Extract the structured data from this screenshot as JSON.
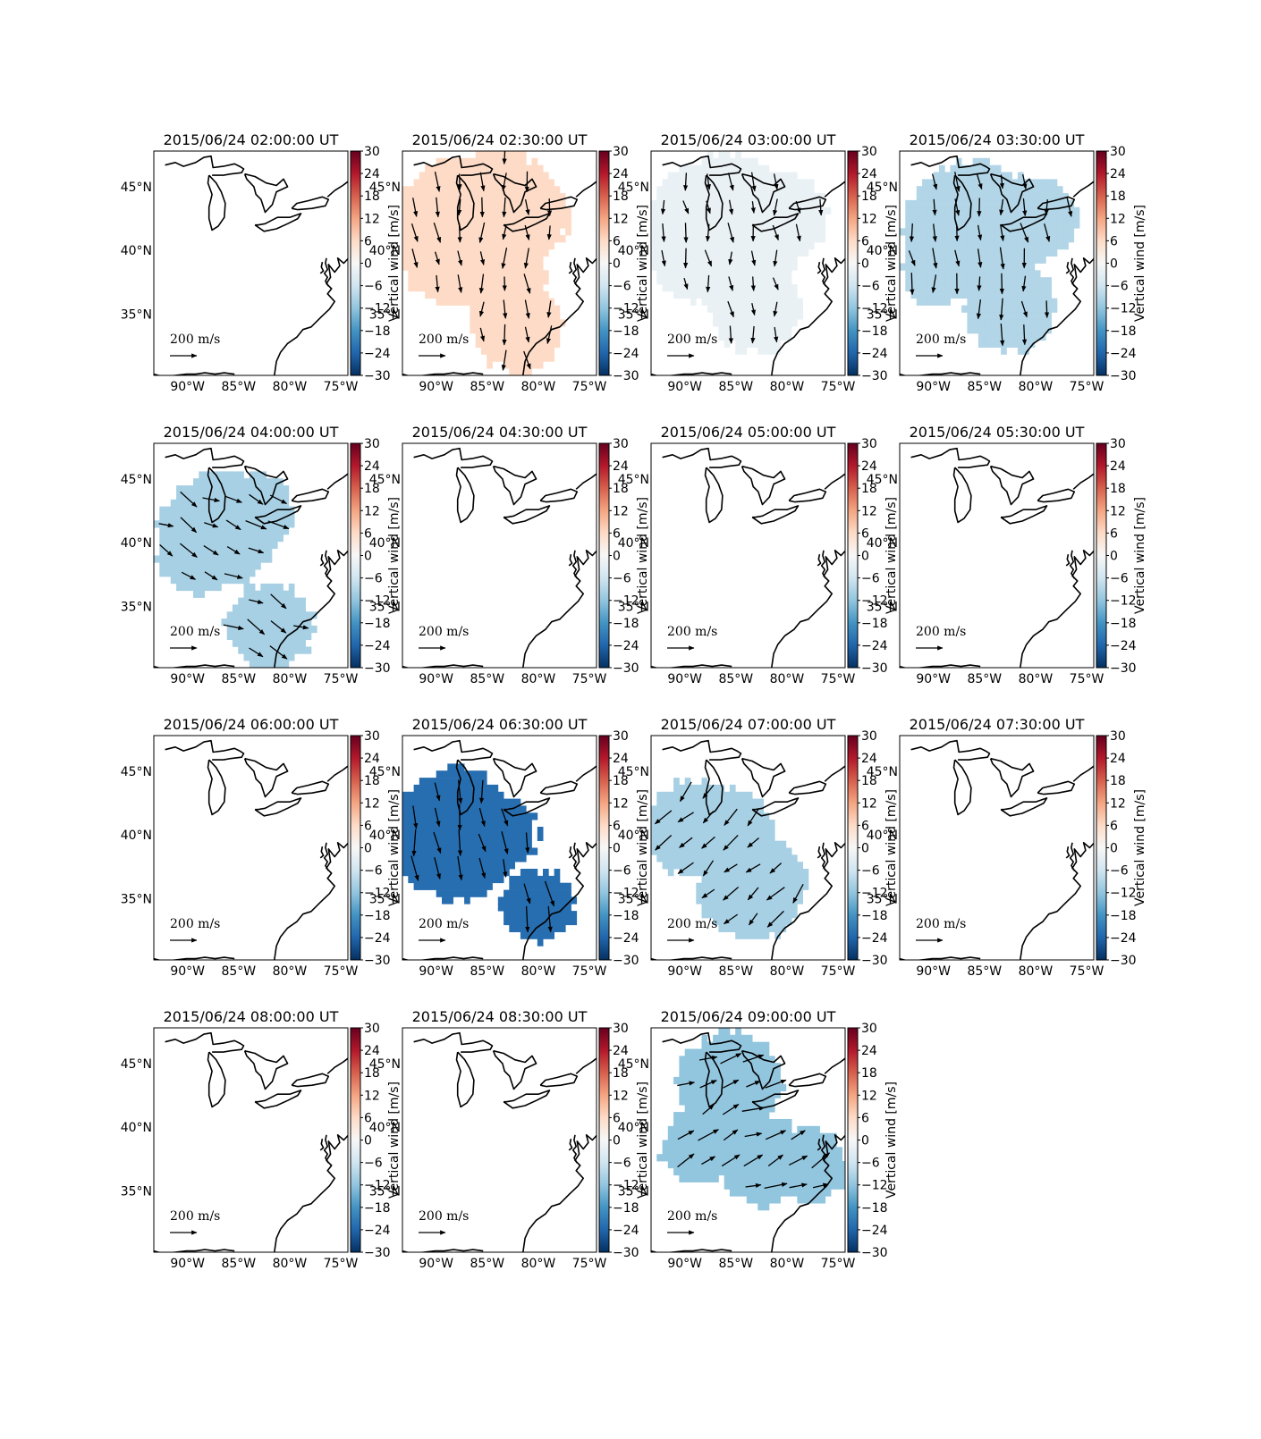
{
  "chart_data": {
    "type": "map-grid",
    "colorbar": {
      "label": "Vertical wind [m/s]",
      "min": -30,
      "max": 30,
      "ticks": [
        30,
        24,
        18,
        12,
        6,
        0,
        -6,
        -12,
        -18,
        -24,
        -30
      ],
      "tick_labels": [
        "30",
        "24",
        "18",
        "12",
        "6",
        "0",
        "−6",
        "−12",
        "−18",
        "−24",
        "−30"
      ],
      "colormap": "RdBu_r",
      "colors": [
        "#053061",
        "#2166ac",
        "#4393c3",
        "#92c5de",
        "#d1e5f0",
        "#f7f7f7",
        "#fddbc7",
        "#f4a582",
        "#d6604d",
        "#b2182b",
        "#67001f"
      ]
    },
    "lon_ticks": [
      -90,
      -85,
      -80,
      -75
    ],
    "lon_tick_labels": [
      "90°W",
      "85°W",
      "80°W",
      "75°W"
    ],
    "lat_ticks": [
      35,
      40,
      45
    ],
    "lat_tick_labels": [
      "35°N",
      "40°N",
      "45°N"
    ],
    "lon_range": [
      -93.3,
      -74.3
    ],
    "lat_range": [
      30.2,
      47.8
    ],
    "arrow_key_label": "200 m/s",
    "panels": [
      {
        "title": "2015/06/24 02:00:00 UT",
        "vertical_wind": null,
        "region": [],
        "flow": [
          0,
          0
        ]
      },
      {
        "title": "2015/06/24 02:30:00 UT",
        "vertical_wind": 6,
        "region": [
          [
            -86.5,
            41.5,
            6
          ],
          [
            -84,
            44.5,
            3.5
          ],
          [
            -81.5,
            43,
            3.5
          ],
          [
            -83.5,
            37.5,
            3.5
          ],
          [
            -82,
            34,
            3.5
          ],
          [
            -89.5,
            39,
            2.8
          ],
          [
            -85,
            38.5,
            3
          ]
        ],
        "flow": [
          0.05,
          -1
        ]
      },
      {
        "title": "2015/06/24 03:00:00 UT",
        "vertical_wind": -2,
        "region": [
          [
            -86,
            41.5,
            6
          ],
          [
            -80.5,
            42.5,
            3.5
          ],
          [
            -83,
            35.5,
            3.5
          ],
          [
            -89.5,
            39,
            2.8
          ]
        ],
        "flow": [
          0.1,
          -1
        ]
      },
      {
        "title": "2015/06/24 03:30:00 UT",
        "vertical_wind": -9,
        "region": [
          [
            -86,
            41.5,
            5.5
          ],
          [
            -80.5,
            42.5,
            3.5
          ],
          [
            -82.5,
            35.5,
            3.5
          ],
          [
            -89.5,
            38.5,
            2.8
          ]
        ],
        "flow": [
          0.1,
          -1
        ]
      },
      {
        "title": "2015/06/24 04:00:00 UT",
        "vertical_wind": -10,
        "region": [
          [
            -87,
            41,
            4.5
          ],
          [
            -89,
            39,
            3
          ],
          [
            -83.5,
            42.5,
            3
          ],
          [
            -82,
            33.5,
            3.3
          ]
        ],
        "flow": [
          1,
          -0.5
        ]
      },
      {
        "title": "2015/06/24 04:30:00 UT",
        "vertical_wind": null,
        "region": [],
        "flow": [
          0,
          0
        ]
      },
      {
        "title": "2015/06/24 05:00:00 UT",
        "vertical_wind": null,
        "region": [],
        "flow": [
          0,
          0
        ]
      },
      {
        "title": "2015/06/24 05:30:00 UT",
        "vertical_wind": null,
        "region": [],
        "flow": [
          0,
          0
        ]
      },
      {
        "title": "2015/06/24 06:00:00 UT",
        "vertical_wind": null,
        "region": [],
        "flow": [
          0,
          0
        ]
      },
      {
        "title": "2015/06/24 06:30:00 UT",
        "vertical_wind": -23,
        "region": [
          [
            -88,
            40,
            5
          ],
          [
            -87.5,
            43,
            2.5
          ],
          [
            -84,
            40,
            3
          ],
          [
            -80,
            34.5,
            2.8
          ]
        ],
        "flow": [
          0.1,
          -1
        ]
      },
      {
        "title": "2015/06/24 07:00:00 UT",
        "vertical_wind": -10,
        "region": [
          [
            -89,
            40.5,
            3.8
          ],
          [
            -85.5,
            40,
            3.5
          ],
          [
            -83.5,
            36,
            4.2
          ],
          [
            -91.5,
            40.5,
            2
          ]
        ],
        "flow": [
          -0.7,
          -0.7
        ]
      },
      {
        "title": "2015/06/24 07:30:00 UT",
        "vertical_wind": null,
        "region": [],
        "flow": [
          0,
          0
        ]
      },
      {
        "title": "2015/06/24 08:00:00 UT",
        "vertical_wind": null,
        "region": [],
        "flow": [
          0,
          0
        ]
      },
      {
        "title": "2015/06/24 08:30:00 UT",
        "vertical_wind": null,
        "region": [],
        "flow": [
          0,
          0
        ]
      },
      {
        "title": "2015/06/24 09:00:00 UT",
        "vertical_wind": -12,
        "region": [
          [
            -85.5,
            43.5,
            4
          ],
          [
            -88.5,
            38.5,
            3
          ],
          [
            -82.5,
            37.5,
            3.5
          ],
          [
            -78,
            37,
            3
          ]
        ],
        "flow": [
          0.9,
          0.4
        ]
      }
    ]
  }
}
